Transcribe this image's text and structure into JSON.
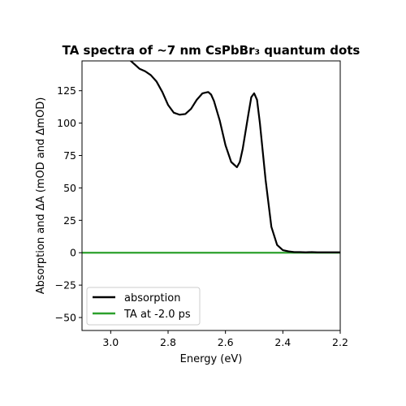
{
  "chart_data": {
    "type": "line",
    "title": "TA spectra of ~7 nm CsPbBr₃ quantum dots",
    "xlabel": "Energy (eV)",
    "ylabel": "Absorption and ΔA (mOD and ΔmOD)",
    "xlim": [
      3.1,
      2.2
    ],
    "ylim": [
      -60,
      148
    ],
    "x_ticks": [
      3.0,
      2.8,
      2.6,
      2.4,
      2.2
    ],
    "x_tick_labels": [
      "3.0",
      "2.8",
      "2.6",
      "2.4",
      "2.2"
    ],
    "y_ticks": [
      -50,
      -25,
      0,
      25,
      50,
      75,
      100,
      125
    ],
    "y_tick_labels": [
      "−50",
      "−25",
      "0",
      "25",
      "50",
      "75",
      "100",
      "125"
    ],
    "grid": false,
    "legend_position": "lower-left",
    "series": [
      {
        "name": "absorption",
        "color": "#000000",
        "x": [
          2.94,
          2.92,
          2.9,
          2.88,
          2.86,
          2.84,
          2.82,
          2.8,
          2.78,
          2.76,
          2.74,
          2.72,
          2.7,
          2.68,
          2.66,
          2.65,
          2.64,
          2.62,
          2.6,
          2.58,
          2.56,
          2.55,
          2.54,
          2.52,
          2.51,
          2.5,
          2.49,
          2.48,
          2.46,
          2.44,
          2.42,
          2.4,
          2.38,
          2.36,
          2.34,
          2.32,
          2.3,
          2.28,
          2.26,
          2.24,
          2.22,
          2.2
        ],
        "y": [
          150,
          146,
          142,
          140,
          137,
          132,
          124,
          114,
          108,
          106.5,
          107,
          111,
          118,
          123,
          124,
          122,
          117,
          102,
          83,
          70,
          66,
          70,
          80,
          107,
          120,
          123,
          118,
          100,
          56,
          20,
          6,
          2,
          1,
          0.5,
          0.5,
          0.3,
          0.5,
          0.3,
          0.3,
          0.3,
          0.3,
          0.3
        ]
      },
      {
        "name": "TA at -2.0 ps",
        "color": "#2ca02c",
        "x": [
          3.1,
          2.2
        ],
        "y": [
          0,
          0
        ]
      }
    ]
  }
}
